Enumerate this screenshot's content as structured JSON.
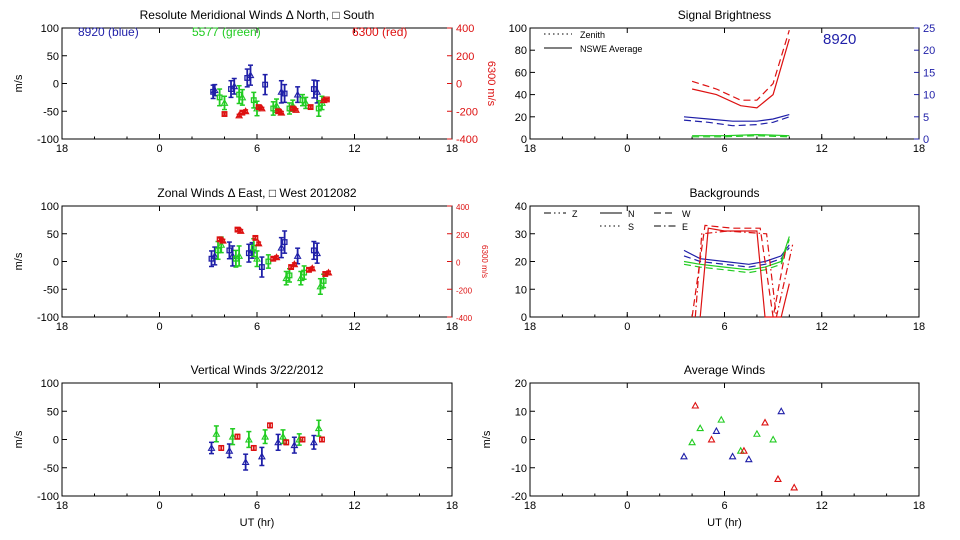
{
  "chart_data": [
    {
      "id": "meridional",
      "type": "scatter",
      "title": "Resolute Meridional Winds Δ North, □ South",
      "ylabel": "m/s",
      "y2label": "6300 m/s",
      "xticks": [
        "18",
        "0",
        "6",
        "12",
        "18"
      ],
      "xlim": [
        -6,
        18
      ],
      "ylim": [
        -100,
        100
      ],
      "yticks": [
        100,
        50,
        0,
        -50,
        -100
      ],
      "y2lim": [
        -400,
        400
      ],
      "y2ticks": [
        400,
        200,
        0,
        -200,
        -400
      ],
      "annotations": [
        {
          "text": "8920 (blue)",
          "color": "#1f1fa8"
        },
        {
          "text": "5577 (green)",
          "color": "#22cc22"
        },
        {
          "text": "6300 (red)",
          "color": "#dd1111"
        }
      ],
      "series": [
        {
          "color": "#1f1fa8",
          "axis": "left",
          "marker": "mixed",
          "points": [
            [
              3.3,
              -15,
              12
            ],
            [
              3.4,
              -12,
              10
            ],
            [
              4.4,
              -10,
              15
            ],
            [
              4.6,
              -5,
              14
            ],
            [
              5.4,
              10,
              16
            ],
            [
              5.6,
              15,
              18
            ],
            [
              6.5,
              -2,
              18
            ],
            [
              7.5,
              -15,
              20
            ],
            [
              7.7,
              -18,
              16
            ],
            [
              8.5,
              -20,
              14
            ],
            [
              9.5,
              -10,
              16
            ],
            [
              9.7,
              -15,
              20
            ]
          ]
        },
        {
          "color": "#22cc22",
          "axis": "left",
          "marker": "mixed",
          "points": [
            [
              3.7,
              -25,
              15
            ],
            [
              4.0,
              -35,
              12
            ],
            [
              4.9,
              -20,
              16
            ],
            [
              5.1,
              -25,
              14
            ],
            [
              5.8,
              -30,
              14
            ],
            [
              6.0,
              -45,
              13
            ],
            [
              7.0,
              -45,
              12
            ],
            [
              7.2,
              -40,
              12
            ],
            [
              8.0,
              -45,
              10
            ],
            [
              8.2,
              -40,
              10
            ],
            [
              8.8,
              -30,
              10
            ],
            [
              9.0,
              -35,
              10
            ],
            [
              9.8,
              -45,
              14
            ],
            [
              10.0,
              -35,
              12
            ]
          ]
        },
        {
          "color": "#dd1111",
          "axis": "right",
          "marker": "mixed",
          "points": [
            [
              4.0,
              -220,
              8
            ],
            [
              4.9,
              -230,
              8
            ],
            [
              5.1,
              -210,
              8
            ],
            [
              5.3,
              -200,
              10
            ],
            [
              6.1,
              -170,
              8
            ],
            [
              6.3,
              -180,
              8
            ],
            [
              7.3,
              -200,
              8
            ],
            [
              7.5,
              -210,
              8
            ],
            [
              8.2,
              -180,
              8
            ],
            [
              8.4,
              -190,
              8
            ],
            [
              9.3,
              -170,
              8
            ],
            [
              10.1,
              -120,
              6
            ],
            [
              10.3,
              -115,
              6
            ]
          ]
        }
      ]
    },
    {
      "id": "zonal",
      "type": "scatter",
      "title": "Zonal Winds Δ East, □ West 2012082",
      "ylabel": "m/s",
      "y2label": "6300 m/s",
      "xticks": [
        "18",
        "0",
        "6",
        "12",
        "18"
      ],
      "xlim": [
        -6,
        18
      ],
      "ylim": [
        -100,
        100
      ],
      "yticks": [
        100,
        50,
        0,
        -50,
        -100
      ],
      "y2lim": [
        -400,
        400
      ],
      "y2ticks": [
        400,
        200,
        0,
        -200,
        -400
      ],
      "series": [
        {
          "color": "#1f1fa8",
          "axis": "left",
          "marker": "mixed",
          "points": [
            [
              3.2,
              5,
              14
            ],
            [
              3.4,
              10,
              16
            ],
            [
              4.3,
              20,
              15
            ],
            [
              4.5,
              10,
              18
            ],
            [
              5.5,
              15,
              16
            ],
            [
              5.7,
              20,
              14
            ],
            [
              6.3,
              -10,
              18
            ],
            [
              7.5,
              25,
              18
            ],
            [
              7.7,
              35,
              20
            ],
            [
              8.5,
              10,
              14
            ],
            [
              9.5,
              20,
              16
            ],
            [
              9.7,
              15,
              18
            ]
          ]
        },
        {
          "color": "#22cc22",
          "axis": "left",
          "marker": "mixed",
          "points": [
            [
              3.6,
              20,
              16
            ],
            [
              3.8,
              30,
              14
            ],
            [
              4.7,
              5,
              15
            ],
            [
              4.9,
              10,
              18
            ],
            [
              5.8,
              25,
              16
            ],
            [
              6.0,
              5,
              14
            ],
            [
              6.7,
              0,
              12
            ],
            [
              7.8,
              -30,
              12
            ],
            [
              8.0,
              -25,
              12
            ],
            [
              8.7,
              -30,
              12
            ],
            [
              8.9,
              -20,
              12
            ],
            [
              9.9,
              -45,
              14
            ],
            [
              10.1,
              -35,
              12
            ]
          ]
        },
        {
          "color": "#dd1111",
          "axis": "right",
          "marker": "mixed",
          "points": [
            [
              3.7,
              160,
              10
            ],
            [
              3.9,
              150,
              10
            ],
            [
              4.8,
              230,
              10
            ],
            [
              5.0,
              220,
              10
            ],
            [
              5.9,
              170,
              10
            ],
            [
              6.1,
              130,
              10
            ],
            [
              7.0,
              20,
              10
            ],
            [
              7.2,
              30,
              10
            ],
            [
              8.1,
              -40,
              10
            ],
            [
              8.3,
              -20,
              10
            ],
            [
              9.2,
              -60,
              10
            ],
            [
              9.4,
              -50,
              10
            ],
            [
              10.2,
              -90,
              10
            ],
            [
              10.4,
              -80,
              10
            ]
          ]
        }
      ]
    },
    {
      "id": "vertical",
      "type": "scatter",
      "title": "Vertical Winds 3/22/2012",
      "ylabel": "m/s",
      "xlabel": "UT (hr)",
      "xticks": [
        "18",
        "0",
        "6",
        "12",
        "18"
      ],
      "xlim": [
        -6,
        18
      ],
      "ylim": [
        -100,
        100
      ],
      "yticks": [
        100,
        50,
        0,
        -50,
        -100
      ],
      "series": [
        {
          "color": "#1f1fa8",
          "axis": "left",
          "marker": "triangle",
          "points": [
            [
              3.2,
              -15,
              10
            ],
            [
              4.3,
              -20,
              12
            ],
            [
              5.3,
              -40,
              14
            ],
            [
              6.3,
              -30,
              16
            ],
            [
              7.3,
              -5,
              14
            ],
            [
              8.3,
              -10,
              14
            ],
            [
              9.5,
              -5,
              12
            ]
          ]
        },
        {
          "color": "#22cc22",
          "axis": "left",
          "marker": "triangle",
          "points": [
            [
              3.5,
              10,
              14
            ],
            [
              4.5,
              5,
              14
            ],
            [
              5.5,
              0,
              14
            ],
            [
              6.5,
              5,
              12
            ],
            [
              7.6,
              5,
              12
            ],
            [
              8.6,
              0,
              10
            ],
            [
              9.8,
              20,
              14
            ]
          ]
        },
        {
          "color": "#dd1111",
          "axis": "left",
          "marker": "square",
          "points": [
            [
              3.8,
              -15,
              4
            ],
            [
              4.8,
              5,
              4
            ],
            [
              5.8,
              -15,
              4
            ],
            [
              6.8,
              25,
              4
            ],
            [
              7.8,
              -5,
              4
            ],
            [
              8.8,
              0,
              4
            ],
            [
              10.0,
              0,
              4
            ]
          ]
        }
      ]
    },
    {
      "id": "signal",
      "type": "line",
      "title": "Signal Brightness",
      "annotation": "8920",
      "legend": [
        {
          "label": "Zenith",
          "style": "dotted"
        },
        {
          "label": "NSWE Average",
          "style": "solid"
        }
      ],
      "legend_position": "top-left",
      "xticks": [
        "18",
        "0",
        "6",
        "12",
        "18"
      ],
      "xlim": [
        -6,
        18
      ],
      "ylim": [
        0,
        100
      ],
      "yticks": [
        0,
        20,
        40,
        60,
        80,
        100
      ],
      "y2lim": [
        0,
        25
      ],
      "y2ticks": [
        0,
        5,
        10,
        15,
        20,
        25
      ],
      "series": [
        {
          "color": "#dd1111",
          "style": "solid",
          "x": [
            4.0,
            5.5,
            7.0,
            8.0,
            9.0,
            10.0
          ],
          "y": [
            45,
            40,
            30,
            28,
            40,
            90
          ]
        },
        {
          "color": "#dd1111",
          "style": "dashed",
          "x": [
            4.0,
            5.5,
            7.0,
            8.0,
            9.0,
            10.0
          ],
          "y": [
            52,
            45,
            35,
            35,
            50,
            98
          ]
        },
        {
          "color": "#1f1fa8",
          "style": "solid",
          "x": [
            3.5,
            5.0,
            6.5,
            8.0,
            9.0,
            10.0
          ],
          "y": [
            20,
            18,
            16,
            16,
            18,
            22
          ]
        },
        {
          "color": "#1f1fa8",
          "style": "dashed",
          "x": [
            3.5,
            5.0,
            6.5,
            8.0,
            9.0,
            10.0
          ],
          "y": [
            17,
            15,
            12,
            13,
            15,
            20
          ]
        },
        {
          "color": "#22cc22",
          "style": "solid",
          "x": [
            4.0,
            6.0,
            8.0,
            10.0
          ],
          "y": [
            3,
            3,
            4,
            3
          ]
        },
        {
          "color": "#22cc22",
          "style": "dashed",
          "x": [
            4.0,
            6.0,
            8.0,
            10.0
          ],
          "y": [
            2,
            2,
            3,
            2
          ]
        }
      ]
    },
    {
      "id": "backgrounds",
      "type": "line",
      "title": "Backgrounds",
      "legend": [
        {
          "label": "Z",
          "style": "dashdotdot"
        },
        {
          "label": "N",
          "style": "solid"
        },
        {
          "label": "W",
          "style": "dashed"
        },
        {
          "label": "S",
          "style": "dotted"
        },
        {
          "label": "E",
          "style": "dashdot"
        }
      ],
      "legend_position": "top-left",
      "xticks": [
        "18",
        "0",
        "6",
        "12",
        "18"
      ],
      "xlim": [
        -6,
        18
      ],
      "ylim": [
        0,
        40
      ],
      "yticks": [
        0,
        10,
        20,
        30,
        40
      ],
      "series": [
        {
          "color": "#1f1fa8",
          "style": "solid",
          "x": [
            3.5,
            4.5,
            6.0,
            7.5,
            8.5,
            9.5,
            10.0
          ],
          "y": [
            24,
            21,
            20,
            19,
            20,
            22,
            26
          ]
        },
        {
          "color": "#1f1fa8",
          "style": "dashed",
          "x": [
            3.5,
            4.5,
            6.0,
            7.5,
            8.5,
            9.5,
            10.0
          ],
          "y": [
            22,
            20,
            19,
            18,
            19,
            21,
            25
          ]
        },
        {
          "color": "#22cc22",
          "style": "solid",
          "x": [
            3.5,
            4.5,
            6.0,
            7.5,
            8.5,
            9.5,
            10.0
          ],
          "y": [
            20,
            19,
            18,
            17,
            18,
            20,
            29
          ]
        },
        {
          "color": "#22cc22",
          "style": "dashed",
          "x": [
            3.5,
            4.5,
            6.0,
            7.5,
            8.5,
            9.5,
            10.0
          ],
          "y": [
            19,
            18,
            17,
            16,
            17,
            19,
            28
          ]
        },
        {
          "color": "#dd1111",
          "style": "solid",
          "x": [
            4.5,
            5.0,
            6.0,
            8.0,
            8.5,
            9.5,
            10.0
          ],
          "y": [
            0,
            32,
            31,
            31,
            0,
            0,
            12
          ]
        },
        {
          "color": "#dd1111",
          "style": "dashed",
          "x": [
            4.0,
            4.8,
            6.5,
            8.2,
            9.0,
            9.8
          ],
          "y": [
            0,
            33,
            32,
            32,
            0,
            25
          ]
        },
        {
          "color": "#dd1111",
          "style": "dashdot",
          "x": [
            4.2,
            4.6,
            6.2,
            8.6,
            9.2,
            10.2
          ],
          "y": [
            0,
            30,
            31,
            30,
            0,
            26
          ]
        }
      ]
    },
    {
      "id": "average",
      "type": "scatter",
      "title": "Average Winds",
      "ylabel": "m/s",
      "xlabel": "UT (hr)",
      "xticks": [
        "18",
        "0",
        "6",
        "12",
        "18"
      ],
      "xlim": [
        -6,
        18
      ],
      "ylim": [
        -20,
        20
      ],
      "yticks": [
        20,
        10,
        0,
        -10,
        -20
      ],
      "series": [
        {
          "color": "#1f1fa8",
          "marker": "triangle",
          "points": [
            [
              3.5,
              -6
            ],
            [
              5.5,
              3
            ],
            [
              6.5,
              -6
            ],
            [
              7.5,
              -7
            ],
            [
              9.5,
              10
            ]
          ]
        },
        {
          "color": "#22cc22",
          "marker": "triangle",
          "points": [
            [
              4.0,
              -1
            ],
            [
              4.5,
              4
            ],
            [
              5.8,
              7
            ],
            [
              7.0,
              -4
            ],
            [
              8.0,
              2
            ],
            [
              9.0,
              0
            ]
          ]
        },
        {
          "color": "#dd1111",
          "marker": "triangle",
          "points": [
            [
              4.2,
              12
            ],
            [
              5.2,
              0
            ],
            [
              7.2,
              -4
            ],
            [
              8.5,
              6
            ],
            [
              9.3,
              -14
            ],
            [
              10.3,
              -17
            ]
          ]
        }
      ]
    }
  ]
}
